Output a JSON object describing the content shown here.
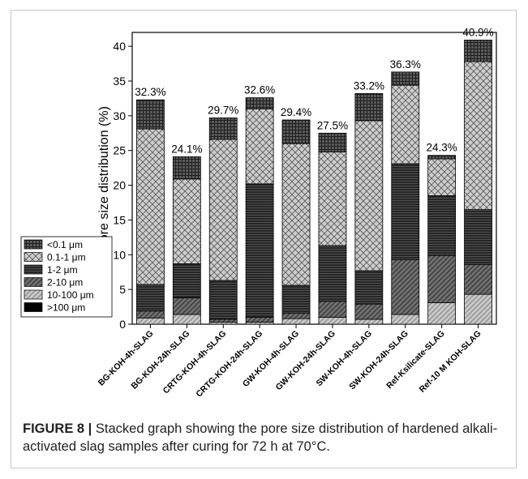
{
  "caption": {
    "label": "FIGURE 8 |",
    "text": "Stacked graph showing the pore size distribution of hardened alkali-activated slag samples after curing for 72 h at 70°C."
  },
  "chart_data": {
    "type": "bar",
    "stacked": true,
    "ylabel": "Pore size distribution (%)",
    "ylim": [
      0,
      42
    ],
    "yticks": [
      0,
      5,
      10,
      15,
      20,
      25,
      30,
      35,
      40
    ],
    "categories": [
      "BG-KOH-4h-SLAG",
      "BG-KOH-24h-SLAG",
      "CRTG-KOH-4h-SLAG",
      "CRTG-KOH-24h-SLAG",
      "GW-KOH-4h-SLAG",
      "GW-KOH-24h-SLAG",
      "SW-KOH-4h-SLAG",
      "SW-KOH-24h-SLAG",
      "Ref-Ksilicate-SLAG",
      "Ref-10 M KOH-SLAG"
    ],
    "totals": [
      "32.3%",
      "24.1%",
      "29.7%",
      "32.6%",
      "29.4%",
      "27.5%",
      "33.2%",
      "36.3%",
      "24.3%",
      "40.9%"
    ],
    "series": [
      {
        "name": ">100 μm",
        "pattern": "solid",
        "values": [
          0.0,
          0.0,
          0.0,
          0.0,
          0.0,
          0.0,
          0.0,
          0.0,
          0.0,
          0.0
        ]
      },
      {
        "name": "10-100 μm",
        "pattern": "diag-light",
        "values": [
          0.9,
          1.4,
          0.3,
          0.3,
          0.8,
          1.0,
          0.7,
          1.4,
          3.1,
          4.3
        ]
      },
      {
        "name": "2-10 μm",
        "pattern": "diag-dark",
        "values": [
          1.0,
          2.4,
          0.4,
          0.7,
          0.8,
          2.3,
          2.2,
          7.9,
          6.8,
          4.3
        ]
      },
      {
        "name": "1-2 μm",
        "pattern": "hlines",
        "values": [
          3.8,
          4.9,
          5.6,
          19.2,
          4.0,
          8.0,
          4.8,
          13.8,
          8.6,
          7.9
        ]
      },
      {
        "name": "0.1-1 μm",
        "pattern": "crosshatch",
        "values": [
          22.4,
          12.2,
          20.3,
          10.8,
          20.4,
          13.5,
          21.6,
          11.3,
          5.3,
          21.3
        ]
      },
      {
        "name": "<0.1 μm",
        "pattern": "grid",
        "values": [
          4.2,
          3.2,
          3.1,
          1.6,
          3.4,
          2.7,
          3.9,
          1.9,
          0.5,
          3.1
        ]
      }
    ],
    "legend": {
      "position": "middle-left",
      "order": [
        "<0.1 μm",
        "0.1-1 μm",
        "1-2 μm",
        "2-10 μm",
        "10-100 μm",
        ">100 μm"
      ]
    }
  }
}
